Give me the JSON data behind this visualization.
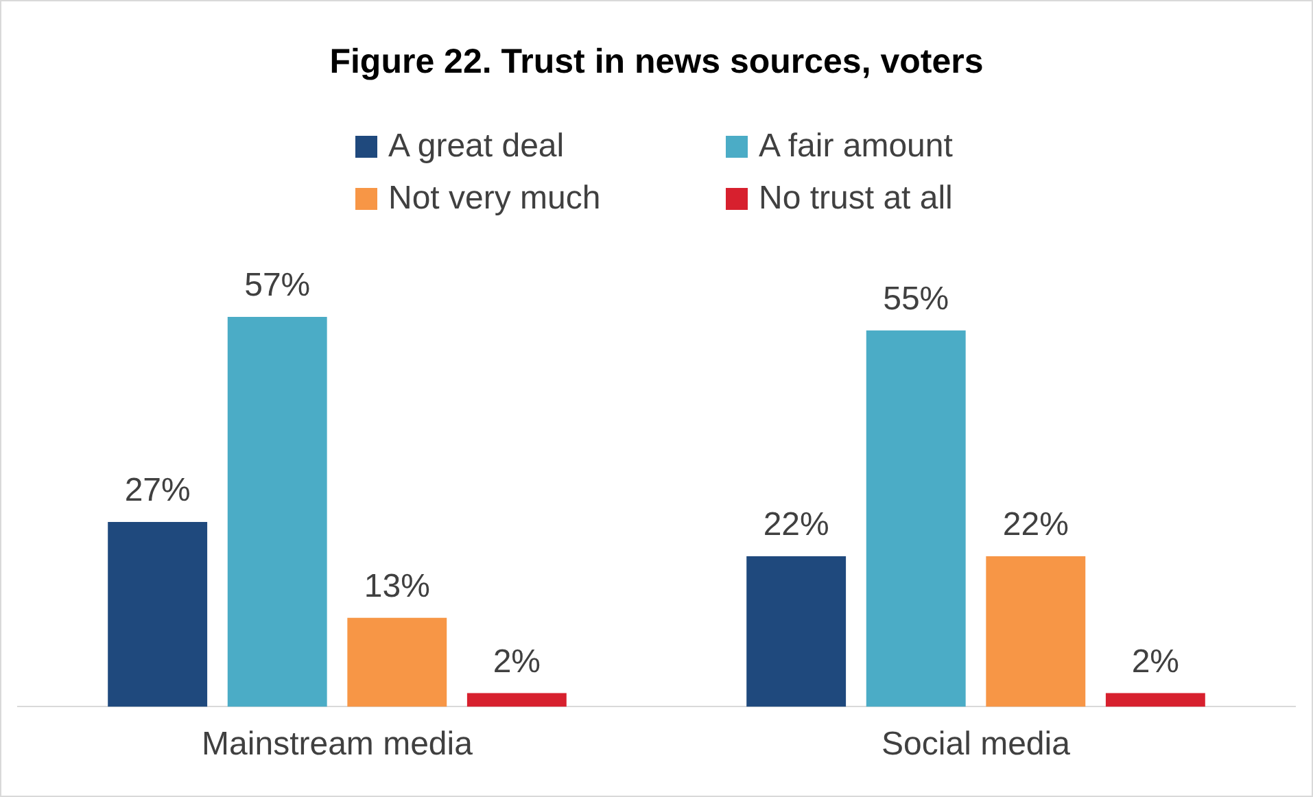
{
  "chart_data": {
    "type": "bar",
    "title": "Figure 22. Trust in news sources, voters",
    "categories": [
      "Mainstream media",
      "Social media"
    ],
    "series": [
      {
        "name": "A great deal",
        "color": "#1f497d",
        "values": [
          27,
          22
        ],
        "value_labels": [
          "27%",
          "22%"
        ]
      },
      {
        "name": "A fair amount",
        "color": "#4bacc6",
        "values": [
          57,
          55
        ],
        "value_labels": [
          "57%",
          "55%"
        ]
      },
      {
        "name": "Not very much",
        "color": "#f79646",
        "values": [
          13,
          22
        ],
        "value_labels": [
          "13%",
          "22%"
        ]
      },
      {
        "name": "No trust at all",
        "color": "#d7202e",
        "values": [
          2,
          2
        ],
        "value_labels": [
          "2%",
          "2%"
        ]
      }
    ],
    "legend": "top",
    "grid": false,
    "tick_labels": "x"
  }
}
